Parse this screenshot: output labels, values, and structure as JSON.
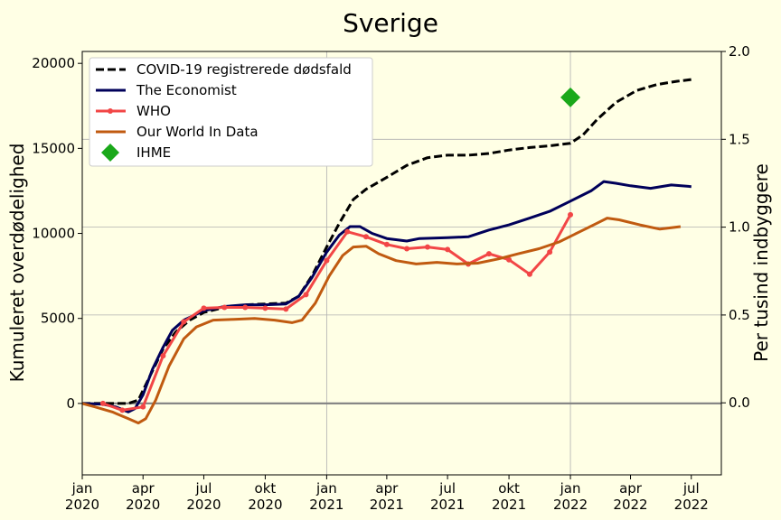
{
  "chart_data": {
    "type": "line",
    "title": "Sverige",
    "ylabel": "Kumuleret overdødelighed",
    "y2label": "Per tusind indbyggere",
    "ylim": [
      -4200,
      20700
    ],
    "y2lim": [
      -0.41,
      2.0
    ],
    "xlim": [
      "2020-01-01",
      "2022-08-15"
    ],
    "grid": true,
    "legend_position": "top-left",
    "y_ticks": [
      0,
      5000,
      10000,
      15000,
      20000
    ],
    "y2_ticks": [
      0.0,
      0.5,
      1.0,
      1.5,
      2.0
    ],
    "x_ticks": [
      {
        "date": "2020-01-01",
        "label": [
          "jan",
          "2020"
        ]
      },
      {
        "date": "2020-04-01",
        "label": [
          "apr",
          "2020"
        ]
      },
      {
        "date": "2020-07-01",
        "label": [
          "jul",
          "2020"
        ]
      },
      {
        "date": "2020-10-01",
        "label": [
          "okt",
          "2020"
        ]
      },
      {
        "date": "2021-01-01",
        "label": [
          "jan",
          "2021"
        ]
      },
      {
        "date": "2021-04-01",
        "label": [
          "apr",
          "2021"
        ]
      },
      {
        "date": "2021-07-01",
        "label": [
          "jul",
          "2021"
        ]
      },
      {
        "date": "2021-10-01",
        "label": [
          "okt",
          "2021"
        ]
      },
      {
        "date": "2022-01-01",
        "label": [
          "jan",
          "2022"
        ]
      },
      {
        "date": "2022-04-01",
        "label": [
          "apr",
          "2022"
        ]
      },
      {
        "date": "2022-07-01",
        "label": [
          "jul",
          "2022"
        ]
      }
    ],
    "series": [
      {
        "name": "COVID-19 registrerede dødsfald",
        "color": "#000000",
        "style": "dashed",
        "points": [
          [
            "2020-01-01",
            0
          ],
          [
            "2020-03-10",
            0
          ],
          [
            "2020-03-25",
            200
          ],
          [
            "2020-04-10",
            1500
          ],
          [
            "2020-05-01",
            3200
          ],
          [
            "2020-05-20",
            4200
          ],
          [
            "2020-06-10",
            4900
          ],
          [
            "2020-07-01",
            5350
          ],
          [
            "2020-08-01",
            5650
          ],
          [
            "2020-09-01",
            5800
          ],
          [
            "2020-10-01",
            5850
          ],
          [
            "2020-11-01",
            5900
          ],
          [
            "2020-11-20",
            6300
          ],
          [
            "2020-12-10",
            7500
          ],
          [
            "2021-01-01",
            9200
          ],
          [
            "2021-01-20",
            10600
          ],
          [
            "2021-02-10",
            12000
          ],
          [
            "2021-03-01",
            12600
          ],
          [
            "2021-04-01",
            13300
          ],
          [
            "2021-05-01",
            14000
          ],
          [
            "2021-06-01",
            14450
          ],
          [
            "2021-07-01",
            14600
          ],
          [
            "2021-08-01",
            14600
          ],
          [
            "2021-09-01",
            14700
          ],
          [
            "2021-10-01",
            14900
          ],
          [
            "2021-11-01",
            15050
          ],
          [
            "2021-12-01",
            15150
          ],
          [
            "2022-01-01",
            15300
          ],
          [
            "2022-01-20",
            15800
          ],
          [
            "2022-02-10",
            16700
          ],
          [
            "2022-03-10",
            17700
          ],
          [
            "2022-04-10",
            18400
          ],
          [
            "2022-05-10",
            18750
          ],
          [
            "2022-06-10",
            18950
          ],
          [
            "2022-07-01",
            19050
          ]
        ]
      },
      {
        "name": "The Economist",
        "color": "#00005a",
        "style": "solid",
        "points": [
          [
            "2020-01-01",
            0
          ],
          [
            "2020-02-01",
            -50
          ],
          [
            "2020-02-20",
            -200
          ],
          [
            "2020-03-10",
            -500
          ],
          [
            "2020-03-20",
            -300
          ],
          [
            "2020-04-01",
            500
          ],
          [
            "2020-04-15",
            2000
          ],
          [
            "2020-05-01",
            3300
          ],
          [
            "2020-05-15",
            4300
          ],
          [
            "2020-06-01",
            4900
          ],
          [
            "2020-07-01",
            5450
          ],
          [
            "2020-08-01",
            5700
          ],
          [
            "2020-09-01",
            5800
          ],
          [
            "2020-10-01",
            5800
          ],
          [
            "2020-11-01",
            5850
          ],
          [
            "2020-11-20",
            6300
          ],
          [
            "2020-12-10",
            7400
          ],
          [
            "2021-01-01",
            8900
          ],
          [
            "2021-01-20",
            9900
          ],
          [
            "2021-02-05",
            10400
          ],
          [
            "2021-02-20",
            10400
          ],
          [
            "2021-03-10",
            10000
          ],
          [
            "2021-04-01",
            9700
          ],
          [
            "2021-05-01",
            9550
          ],
          [
            "2021-05-20",
            9700
          ],
          [
            "2021-07-01",
            9750
          ],
          [
            "2021-08-01",
            9800
          ],
          [
            "2021-09-01",
            10200
          ],
          [
            "2021-10-01",
            10500
          ],
          [
            "2021-11-01",
            10900
          ],
          [
            "2021-12-01",
            11300
          ],
          [
            "2022-01-01",
            11900
          ],
          [
            "2022-02-01",
            12500
          ],
          [
            "2022-02-20",
            13050
          ],
          [
            "2022-03-10",
            12950
          ],
          [
            "2022-04-01",
            12800
          ],
          [
            "2022-05-01",
            12650
          ],
          [
            "2022-06-01",
            12850
          ],
          [
            "2022-07-01",
            12750
          ]
        ]
      },
      {
        "name": "WHO",
        "color": "#f24646",
        "style": "solid-markers",
        "points": [
          [
            "2020-02-01",
            0
          ],
          [
            "2020-03-01",
            -400
          ],
          [
            "2020-04-01",
            -200
          ],
          [
            "2020-05-01",
            2800
          ],
          [
            "2020-06-01",
            4800
          ],
          [
            "2020-07-01",
            5600
          ],
          [
            "2020-08-01",
            5650
          ],
          [
            "2020-09-01",
            5650
          ],
          [
            "2020-10-01",
            5600
          ],
          [
            "2020-11-01",
            5550
          ],
          [
            "2020-12-01",
            6400
          ],
          [
            "2021-01-01",
            8400
          ],
          [
            "2021-02-01",
            10100
          ],
          [
            "2021-03-01",
            9800
          ],
          [
            "2021-04-01",
            9350
          ],
          [
            "2021-05-01",
            9100
          ],
          [
            "2021-06-01",
            9200
          ],
          [
            "2021-07-01",
            9050
          ],
          [
            "2021-08-01",
            8200
          ],
          [
            "2021-09-01",
            8800
          ],
          [
            "2021-10-01",
            8450
          ],
          [
            "2021-11-01",
            7600
          ],
          [
            "2021-12-01",
            8900
          ],
          [
            "2022-01-01",
            11100
          ]
        ]
      },
      {
        "name": "Our World In Data",
        "color": "#c05a10",
        "style": "solid",
        "points": [
          [
            "2020-01-01",
            0
          ],
          [
            "2020-01-20",
            -200
          ],
          [
            "2020-02-15",
            -500
          ],
          [
            "2020-03-10",
            -900
          ],
          [
            "2020-03-25",
            -1150
          ],
          [
            "2020-04-05",
            -900
          ],
          [
            "2020-04-20",
            200
          ],
          [
            "2020-05-10",
            2200
          ],
          [
            "2020-06-01",
            3800
          ],
          [
            "2020-06-20",
            4500
          ],
          [
            "2020-07-15",
            4900
          ],
          [
            "2020-08-15",
            4950
          ],
          [
            "2020-09-15",
            5000
          ],
          [
            "2020-10-15",
            4900
          ],
          [
            "2020-11-10",
            4750
          ],
          [
            "2020-11-25",
            4900
          ],
          [
            "2020-12-15",
            5900
          ],
          [
            "2021-01-05",
            7500
          ],
          [
            "2021-01-25",
            8700
          ],
          [
            "2021-02-10",
            9200
          ],
          [
            "2021-03-01",
            9250
          ],
          [
            "2021-03-20",
            8800
          ],
          [
            "2021-04-15",
            8400
          ],
          [
            "2021-05-15",
            8200
          ],
          [
            "2021-06-15",
            8300
          ],
          [
            "2021-07-15",
            8200
          ],
          [
            "2021-08-15",
            8250
          ],
          [
            "2021-09-15",
            8500
          ],
          [
            "2021-10-15",
            8800
          ],
          [
            "2021-11-15",
            9100
          ],
          [
            "2021-12-15",
            9500
          ],
          [
            "2022-01-15",
            10100
          ],
          [
            "2022-02-10",
            10600
          ],
          [
            "2022-02-25",
            10900
          ],
          [
            "2022-03-15",
            10800
          ],
          [
            "2022-04-15",
            10500
          ],
          [
            "2022-05-15",
            10250
          ],
          [
            "2022-06-15",
            10400
          ]
        ]
      }
    ],
    "markers": [
      {
        "name": "IHME",
        "color": "#1aa81a",
        "shape": "diamond",
        "date": "2022-01-01",
        "value": 18000
      }
    ],
    "zero_line": 0
  }
}
